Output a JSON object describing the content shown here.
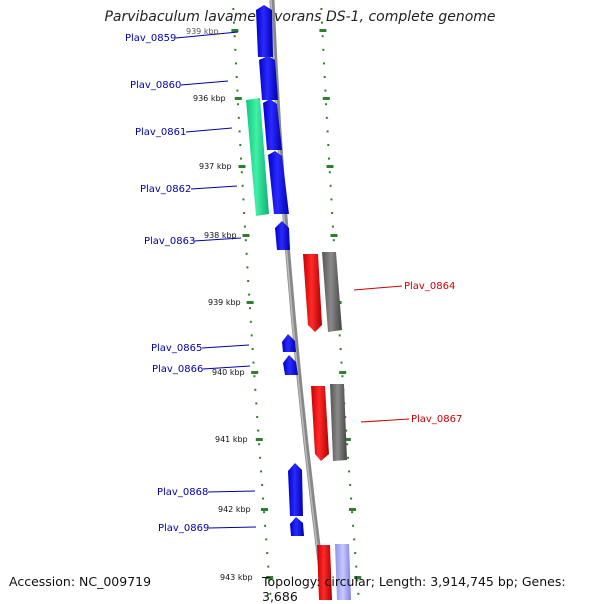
{
  "title": "Parvibaculum lavamentivorans DS-1, complete genome",
  "accession": "Accession: NC_009719",
  "topology": "Topology: circular; Length: 3,914,745 bp; Genes: 3,686",
  "colors": {
    "forward_gene": "#0000ff",
    "forward_label": "#0000aa",
    "reverse_gene": "#ff0000",
    "reverse_label": "#cc0000",
    "rna_gene": "#20e890",
    "orthology_track": "#666666",
    "tick_mark": "#2f7f2f",
    "backbone": "#888888"
  },
  "scale_labels": [
    {
      "name": "kbp-936",
      "text": "936 kbp"
    },
    {
      "name": "kbp-937",
      "text": "937 kbp"
    },
    {
      "name": "kbp-938",
      "text": "938 kbp"
    },
    {
      "name": "kbp-939",
      "text": "939 kbp"
    },
    {
      "name": "kbp-940",
      "text": "940 kbp"
    },
    {
      "name": "kbp-941",
      "text": "941 kbp"
    },
    {
      "name": "kbp-942",
      "text": "942 kbp"
    },
    {
      "name": "kbp-943",
      "text": "943 kbp"
    }
  ],
  "gene_labels": [
    {
      "name": "Plav-0859",
      "text": "Plav_0859",
      "strand": "forward"
    },
    {
      "name": "Plav-0860",
      "text": "Plav_0860",
      "strand": "forward"
    },
    {
      "name": "Plav-0861",
      "text": "Plav_0861",
      "strand": "forward"
    },
    {
      "name": "Plav-0862",
      "text": "Plav_0862",
      "strand": "forward"
    },
    {
      "name": "Plav-0863",
      "text": "Plav_0863",
      "strand": "forward"
    },
    {
      "name": "Plav-0864",
      "text": "Plav_0864",
      "strand": "reverse"
    },
    {
      "name": "Plav-0865",
      "text": "Plav_0865",
      "strand": "forward"
    },
    {
      "name": "Plav-0866",
      "text": "Plav_0866",
      "strand": "forward"
    },
    {
      "name": "Plav-0867",
      "text": "Plav_0867",
      "strand": "reverse"
    },
    {
      "name": "Plav-0868",
      "text": "Plav_0868",
      "strand": "forward"
    },
    {
      "name": "Plav-0869",
      "text": "Plav_0869",
      "strand": "forward"
    }
  ]
}
